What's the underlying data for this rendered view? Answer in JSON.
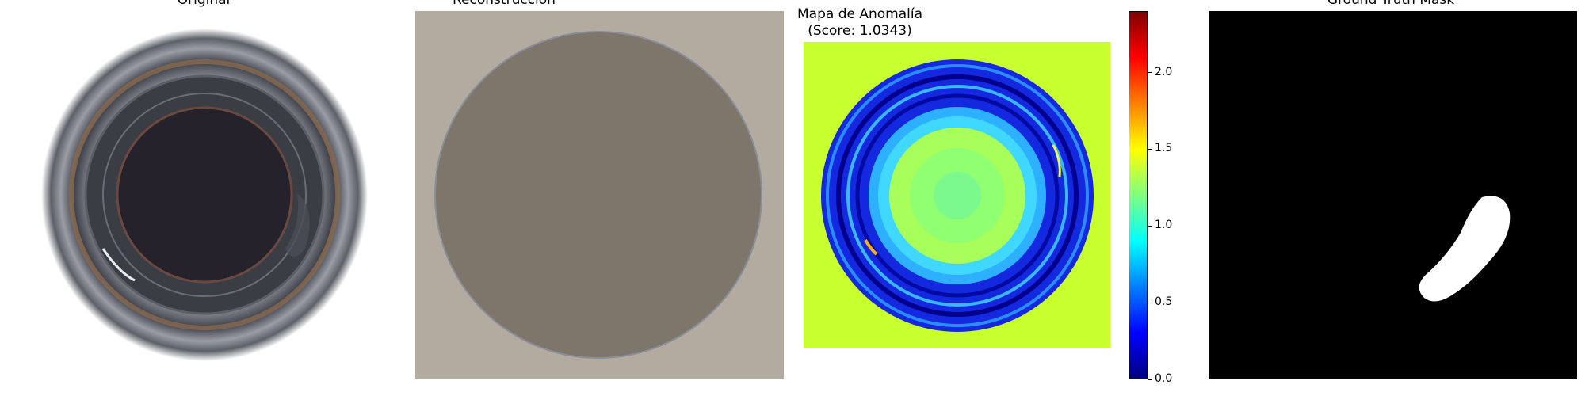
{
  "figure": {
    "panels": [
      {
        "title": "Original",
        "content": "bottle-top photograph"
      },
      {
        "title": "Reconstrucción",
        "content": "reconstructed image"
      },
      {
        "title": "Mapa de Anomalía",
        "subtitle": "(Score: 1.0343)",
        "content": "anomaly heatmap"
      },
      {
        "title": "Ground Truth Mask",
        "content": "binary mask"
      }
    ]
  },
  "colors": {
    "recon_background": "#b3aaa0",
    "recon_disc": "#7e766a",
    "heatmap_background": "#c8ff2e",
    "mask_background": "#000000",
    "mask_defect": "#ffffff"
  },
  "chart_data": [
    {
      "type": "heatmap",
      "title": "Mapa de Anomalía",
      "subtitle": "(Score: 1.0343)",
      "score": 1.0343,
      "colormap": "jet",
      "colorbar": {
        "min": 0.0,
        "max": 2.4,
        "ticks": [
          0.0,
          0.5,
          1.0,
          1.5,
          2.0
        ],
        "tick_labels": [
          "0.0",
          "0.5",
          "1.0",
          "1.5",
          "2.0"
        ]
      },
      "grid": false
    }
  ]
}
